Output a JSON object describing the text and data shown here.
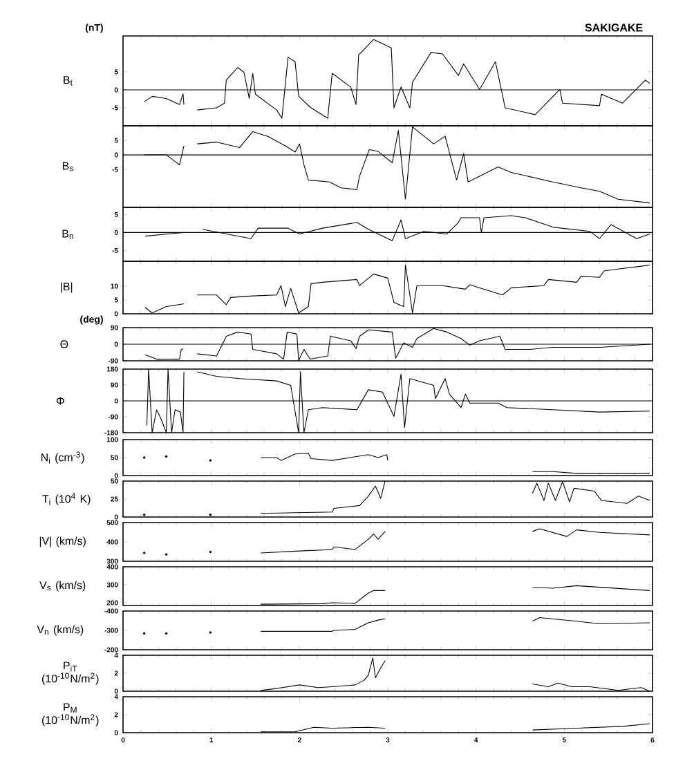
{
  "chart_data": [
    {
      "type": "line",
      "title": "SAKIGAKE",
      "annotations": [
        "(nT)"
      ],
      "ylabel": "B$_{t}$",
      "xlim": [
        0,
        6
      ],
      "xticks": [
        0,
        1,
        2,
        3,
        4,
        5,
        6
      ],
      "ylim": [
        -10,
        15
      ],
      "yticks": [
        -5,
        0,
        5
      ],
      "tick_labels": "y",
      "ref_lines": [
        {
          "axis": "y",
          "value": 0
        }
      ],
      "series": [
        {
          "color": "#000000",
          "x": [
            0.24,
            0.33,
            0.49,
            0.64,
            0.68,
            0.69,
            0.75,
            0.84,
            1.06,
            1.15,
            1.17,
            1.3,
            1.37,
            1.43,
            1.47,
            1.5,
            1.74,
            1.8,
            1.87,
            1.95,
            1.99,
            2.13,
            2.32,
            2.37,
            2.58,
            2.64,
            2.67,
            2.84,
            3.04,
            3.07,
            3.15,
            3.25,
            3.28,
            3.49,
            3.62,
            3.8,
            3.86,
            4.04,
            4.22,
            4.33,
            4.67,
            4.95,
            4.98,
            5.4,
            5.42,
            5.66,
            5.92,
            5.97
          ],
          "values": [
            -3.3,
            -1.8,
            -2.4,
            -4.1,
            -1.1,
            -4.1,
            null,
            -5.6,
            -5.0,
            -3.7,
            2.7,
            6.2,
            4.9,
            -2.4,
            4.6,
            -1.2,
            -5.6,
            -7.9,
            9.1,
            7.8,
            -1.8,
            -5.0,
            -7.9,
            4.6,
            0.8,
            -4.1,
            9.7,
            14.0,
            11.7,
            -5.0,
            0.8,
            -5.0,
            2.1,
            10.4,
            10.0,
            4.0,
            7.2,
            0.1,
            7.8,
            -5.0,
            -6.9,
            0.1,
            -3.7,
            -4.4,
            -1.2,
            -3.7,
            2.7,
            1.8
          ]
        }
      ]
    },
    {
      "type": "line",
      "ylabel": "B$_{s}$",
      "xlim": [
        0,
        6
      ],
      "xticks": [
        0,
        1,
        2,
        3,
        4,
        5,
        6
      ],
      "ylim": [
        -18,
        10
      ],
      "yticks": [
        -5,
        0,
        5
      ],
      "tick_labels": "y",
      "ref_lines": [
        {
          "axis": "y",
          "value": 0
        }
      ],
      "series": [
        {
          "color": "#000000",
          "x": [
            0.24,
            0.49,
            0.64,
            0.69,
            0.75,
            0.84,
            1.06,
            1.32,
            1.47,
            1.64,
            1.84,
            1.95,
            2.0,
            2.05,
            2.1,
            2.34,
            2.47,
            2.65,
            2.68,
            2.79,
            2.89,
            3.05,
            3.12,
            3.2,
            3.28,
            3.52,
            3.65,
            3.78,
            3.86,
            3.91,
            4.25,
            4.4,
            4.87,
            5.19,
            5.4,
            5.61,
            5.97
          ],
          "values": [
            0,
            0,
            -3.4,
            3.1,
            null,
            3.8,
            4.4,
            2.5,
            8.0,
            6.4,
            3.1,
            1.0,
            3.8,
            -3.4,
            -8.6,
            -9.3,
            -11.3,
            -11.9,
            -7.3,
            1.8,
            1.2,
            -2.7,
            8.4,
            -15.2,
            9.6,
            3.8,
            6.4,
            -8.6,
            0.5,
            -9.3,
            -4.1,
            -6.0,
            -9.3,
            -11.3,
            -12.5,
            -15.2,
            -16.5
          ]
        }
      ]
    },
    {
      "type": "line",
      "ylabel": "B$_{n}$",
      "xlim": [
        0,
        6
      ],
      "xticks": [
        0,
        1,
        2,
        3,
        4,
        5,
        6
      ],
      "ylim": [
        -8,
        7
      ],
      "yticks": [
        -5,
        0,
        5
      ],
      "tick_labels": "y",
      "ref_lines": [
        {
          "axis": "y",
          "value": 0
        }
      ],
      "series": [
        {
          "color": "#000000",
          "x": [
            0.25,
            0.69,
            0.75,
            0.9,
            1.45,
            1.53,
            1.87,
            2.0,
            2.26,
            2.65,
            2.78,
            3.05,
            3.15,
            3.2,
            3.41,
            3.67,
            3.8,
            3.83,
            4.04,
            4.06,
            4.09,
            4.4,
            4.56,
            4.87,
            5.29,
            5.4,
            5.53,
            5.82,
            5.97
          ],
          "values": [
            -1.0,
            0,
            null,
            0.9,
            -1.7,
            1.2,
            1.2,
            -0.4,
            1.2,
            2.8,
            0.9,
            -2.3,
            3.5,
            -1.7,
            0.3,
            -0.4,
            2.8,
            4.1,
            4.1,
            0,
            4.1,
            4.7,
            4.1,
            1.5,
            0.3,
            -1.7,
            2.2,
            -1.7,
            -0.4
          ]
        }
      ]
    },
    {
      "type": "line",
      "ylabel": "|B|",
      "xlim": [
        0,
        6
      ],
      "xticks": [
        0,
        1,
        2,
        3,
        4,
        5,
        6
      ],
      "ylim": [
        0,
        19
      ],
      "yticks": [
        0,
        5,
        10
      ],
      "tick_labels": "y",
      "series": [
        {
          "color": "#000000",
          "x": [
            0.25,
            0.33,
            0.49,
            0.69,
            0.75,
            0.84,
            1.06,
            1.17,
            1.22,
            1.43,
            1.74,
            1.79,
            1.84,
            1.9,
            1.99,
            2.1,
            2.13,
            2.26,
            2.65,
            2.68,
            2.84,
            3.0,
            3.07,
            3.18,
            3.2,
            3.28,
            3.33,
            3.62,
            3.88,
            3.93,
            4.3,
            4.4,
            4.77,
            4.82,
            5.14,
            5.19,
            5.4,
            5.45,
            5.61,
            5.92,
            5.97
          ],
          "values": [
            2.3,
            0.3,
            2.6,
            3.6,
            null,
            6.8,
            6.8,
            3.3,
            5.9,
            6.4,
            6.8,
            10.2,
            2.6,
            9.2,
            0.3,
            2.6,
            10.9,
            11.4,
            12.4,
            10.2,
            14.4,
            12.9,
            4.1,
            2.6,
            17.7,
            0.3,
            10.2,
            10.2,
            8.9,
            10.5,
            6.8,
            9.4,
            10.2,
            12.4,
            11.4,
            13.6,
            13.2,
            15.5,
            16.2,
            17.4,
            17.7
          ]
        }
      ]
    },
    {
      "type": "line",
      "annotations": [
        "(deg)"
      ],
      "ylabel": "Θ",
      "xlim": [
        0,
        6
      ],
      "xticks": [
        0,
        1,
        2,
        3,
        4,
        5,
        6
      ],
      "ylim": [
        -90,
        90
      ],
      "yticks": [
        -90,
        0,
        90
      ],
      "tick_labels": "y",
      "ref_lines": [
        {
          "axis": "y",
          "value": 0
        }
      ],
      "series": [
        {
          "color": "#000000",
          "x": [
            0.25,
            0.38,
            0.64,
            0.66,
            0.68,
            0.75,
            0.84,
            1.06,
            1.17,
            1.3,
            1.45,
            1.47,
            1.74,
            1.82,
            1.86,
            1.97,
            1.99,
            2.05,
            2.12,
            2.32,
            2.35,
            2.58,
            2.64,
            2.68,
            2.78,
            3.05,
            3.09,
            3.18,
            3.28,
            3.33,
            3.52,
            3.67,
            3.83,
            3.93,
            4.04,
            4.27,
            4.33,
            4.61,
            4.87,
            5.4,
            5.97
          ],
          "values": [
            -57,
            -81,
            -81,
            -28,
            -24,
            null,
            -52,
            -64,
            43,
            66,
            55,
            -28,
            -52,
            -81,
            66,
            55,
            -88,
            -28,
            -81,
            -64,
            43,
            19,
            -24,
            43,
            78,
            66,
            -76,
            7,
            -17,
            31,
            85,
            66,
            31,
            -5,
            19,
            43,
            -28,
            -28,
            -17,
            -17,
            0
          ]
        }
      ]
    },
    {
      "type": "line",
      "ylabel": "Φ",
      "xlim": [
        0,
        6
      ],
      "xticks": [
        0,
        1,
        2,
        3,
        4,
        5,
        6
      ],
      "ylim": [
        -180,
        180
      ],
      "yticks": [
        -180,
        -90,
        0,
        90,
        180
      ],
      "tick_labels": "y",
      "ref_lines": [
        {
          "axis": "y",
          "value": 0
        }
      ],
      "series": [
        {
          "color": "#000000",
          "x": [
            0.27,
            0.29,
            0.33,
            0.38,
            0.43,
            0.49,
            0.51,
            0.55,
            0.59,
            0.65,
            0.68,
            0.69,
            0.75,
            0.84,
            1.06,
            1.32,
            1.74,
            1.9,
            1.99,
            2.01,
            2.05,
            2.1,
            2.26,
            2.65,
            2.78,
            2.94,
            3.07,
            3.15,
            3.19,
            3.25,
            3.52,
            3.54,
            3.65,
            3.7,
            3.83,
            3.88,
            3.93,
            4.25,
            4.35,
            4.87,
            5.4,
            5.97
          ],
          "values": [
            -139,
            180,
            -180,
            -50,
            -101,
            -180,
            180,
            -180,
            -50,
            -63,
            -180,
            164,
            null,
            164,
            139,
            126,
            113,
            88,
            -180,
            164,
            -180,
            -50,
            -38,
            -50,
            63,
            50,
            -88,
            151,
            -151,
            126,
            88,
            13,
            126,
            38,
            -38,
            38,
            -13,
            -13,
            -38,
            -50,
            -63,
            -58
          ]
        }
      ]
    },
    {
      "type": "line",
      "ylabel": "N$_{i}$ (cm$^{-3}$)",
      "xlim": [
        0,
        6
      ],
      "xticks": [
        0,
        1,
        2,
        3,
        4,
        5,
        6
      ],
      "ylim": [
        0,
        100
      ],
      "yticks": [
        0,
        50,
        100
      ],
      "tick_labels": "y",
      "series": [
        {
          "color": "#000000",
          "x": [
            1.56,
            1.74,
            1.79,
            1.95,
            2.1,
            2.13,
            2.37,
            2.78,
            2.89,
            2.99,
            3.0,
            3.5,
            4.64,
            4.87,
            5.14,
            5.97
          ],
          "values": [
            50,
            50,
            42,
            60,
            62,
            47,
            42,
            58,
            50,
            58,
            42,
            null,
            11,
            11,
            6,
            6
          ]
        },
        {
          "type": "scatter",
          "marker": "circle",
          "color": "#000000",
          "x": [
            0.24,
            0.49,
            0.99
          ],
          "values": [
            50,
            53,
            42
          ]
        }
      ]
    },
    {
      "type": "line",
      "ylabel": "T$_{i}$ (10$^{4}$ K)",
      "xlim": [
        0,
        6
      ],
      "xticks": [
        0,
        1,
        2,
        3,
        4,
        5,
        6
      ],
      "ylim": [
        0,
        50
      ],
      "yticks": [
        0,
        25,
        50
      ],
      "tick_labels": "y",
      "series": [
        {
          "color": "#000000",
          "x": [
            1.56,
            2.37,
            2.39,
            2.68,
            2.78,
            2.86,
            2.92,
            2.97,
            3.5,
            4.64,
            4.69,
            4.77,
            4.82,
            4.9,
            4.98,
            5.06,
            5.11,
            5.34,
            5.42,
            5.71,
            5.84,
            5.97
          ],
          "values": [
            5,
            7,
            12,
            16,
            29,
            43,
            26,
            50,
            null,
            33,
            47,
            23,
            47,
            23,
            49,
            21,
            40,
            36,
            23,
            19,
            29,
            23
          ]
        },
        {
          "type": "scatter",
          "marker": "circle",
          "color": "#000000",
          "x": [
            0.24,
            0.99
          ],
          "values": [
            3,
            3
          ]
        }
      ]
    },
    {
      "type": "line",
      "ylabel": "|V| (km/s)",
      "xlim": [
        0,
        6
      ],
      "xticks": [
        0,
        1,
        2,
        3,
        4,
        5,
        6
      ],
      "ylim": [
        300,
        500
      ],
      "yticks": [
        300,
        400,
        500
      ],
      "tick_labels": "y",
      "series": [
        {
          "color": "#000000",
          "x": [
            1.56,
            2.0,
            2.26,
            2.37,
            2.39,
            2.63,
            2.78,
            2.84,
            2.89,
            2.97,
            3.5,
            4.64,
            4.72,
            5.03,
            5.14,
            5.4,
            5.97
          ],
          "values": [
            343,
            353,
            358,
            361,
            374,
            361,
            414,
            441,
            414,
            454,
            null,
            454,
            468,
            428,
            462,
            449,
            436
          ]
        },
        {
          "type": "scatter",
          "marker": "circle",
          "color": "#000000",
          "x": [
            0.24,
            0.49,
            0.99
          ],
          "values": [
            343,
            335,
            348
          ]
        }
      ]
    },
    {
      "type": "line",
      "ylabel": "V$_{s}$ (km/s)",
      "xlim": [
        0,
        6
      ],
      "xticks": [
        0,
        1,
        2,
        3,
        4,
        5,
        6
      ],
      "ylim": [
        185,
        400
      ],
      "yticks": [
        200,
        300,
        400
      ],
      "tick_labels": "y",
      "series": [
        {
          "color": "#000000",
          "x": [
            1.56,
            2.26,
            2.37,
            2.63,
            2.78,
            2.84,
            2.97,
            3.5,
            4.64,
            4.87,
            5.14,
            5.97
          ],
          "values": [
            192,
            195,
            200,
            197,
            254,
            268,
            268,
            null,
            286,
            281,
            295,
            268
          ]
        }
      ]
    },
    {
      "type": "line",
      "ylabel": "V$_{n}$ (km/s)",
      "xlim": [
        0,
        6
      ],
      "xticks": [
        0,
        1,
        2,
        3,
        4,
        5,
        6
      ],
      "ylim": [
        -200,
        -400
      ],
      "yticks": [
        -400,
        -300,
        -200
      ],
      "tick_labels": "y",
      "series": [
        {
          "color": "#000000",
          "x": [
            1.56,
            2.37,
            2.39,
            2.63,
            2.78,
            2.89,
            2.97,
            3.5,
            4.64,
            4.72,
            5.14,
            5.4,
            5.97
          ],
          "values": [
            -295,
            -295,
            -300,
            -305,
            -339,
            -353,
            -360,
            null,
            -347,
            -366,
            -347,
            -334,
            -339
          ]
        },
        {
          "type": "scatter",
          "marker": "circle",
          "color": "#000000",
          "x": [
            0.24,
            0.49,
            0.99
          ],
          "values": [
            -284,
            -284,
            -289
          ]
        }
      ]
    },
    {
      "type": "line",
      "ylabel": "P$_{iT}$ (10$^{-10}$N/m$^{2}$)",
      "xlim": [
        0,
        6
      ],
      "xticks": [
        0,
        1,
        2,
        3,
        4,
        5,
        6
      ],
      "ylim": [
        0,
        4
      ],
      "yticks": [
        0,
        2,
        4
      ],
      "tick_labels": "y",
      "series": [
        {
          "color": "#000000",
          "x": [
            1.56,
            1.74,
            2.0,
            2.21,
            2.37,
            2.63,
            2.73,
            2.78,
            2.83,
            2.86,
            2.92,
            2.97,
            3.5,
            4.64,
            4.82,
            4.93,
            5.08,
            5.29,
            5.61,
            5.87,
            5.97
          ],
          "values": [
            0.1,
            0.3,
            0.7,
            0.4,
            0.5,
            0.7,
            1.2,
            1.8,
            3.7,
            1.5,
            2.6,
            3.4,
            null,
            0.8,
            0.5,
            0.9,
            0.5,
            0.5,
            0.1,
            0.4,
            0
          ]
        }
      ]
    },
    {
      "type": "line",
      "ylabel": "P$_{M}$ (10$^{-10}$N/m$^{2}$)",
      "xlim": [
        0,
        6
      ],
      "xticks": [
        0,
        1,
        2,
        3,
        4,
        5,
        6
      ],
      "ylim": [
        0,
        4
      ],
      "yticks": [
        0,
        2,
        4
      ],
      "series": [
        {
          "color": "#000000",
          "x": [
            1.56,
            1.95,
            2.16,
            2.37,
            2.78,
            2.97,
            3.5,
            4.64,
            5.14,
            5.66,
            5.97
          ],
          "values": [
            0.1,
            0.1,
            0.6,
            0.5,
            0.6,
            0.5,
            null,
            0.3,
            0.5,
            0.7,
            1.0
          ]
        }
      ]
    }
  ]
}
